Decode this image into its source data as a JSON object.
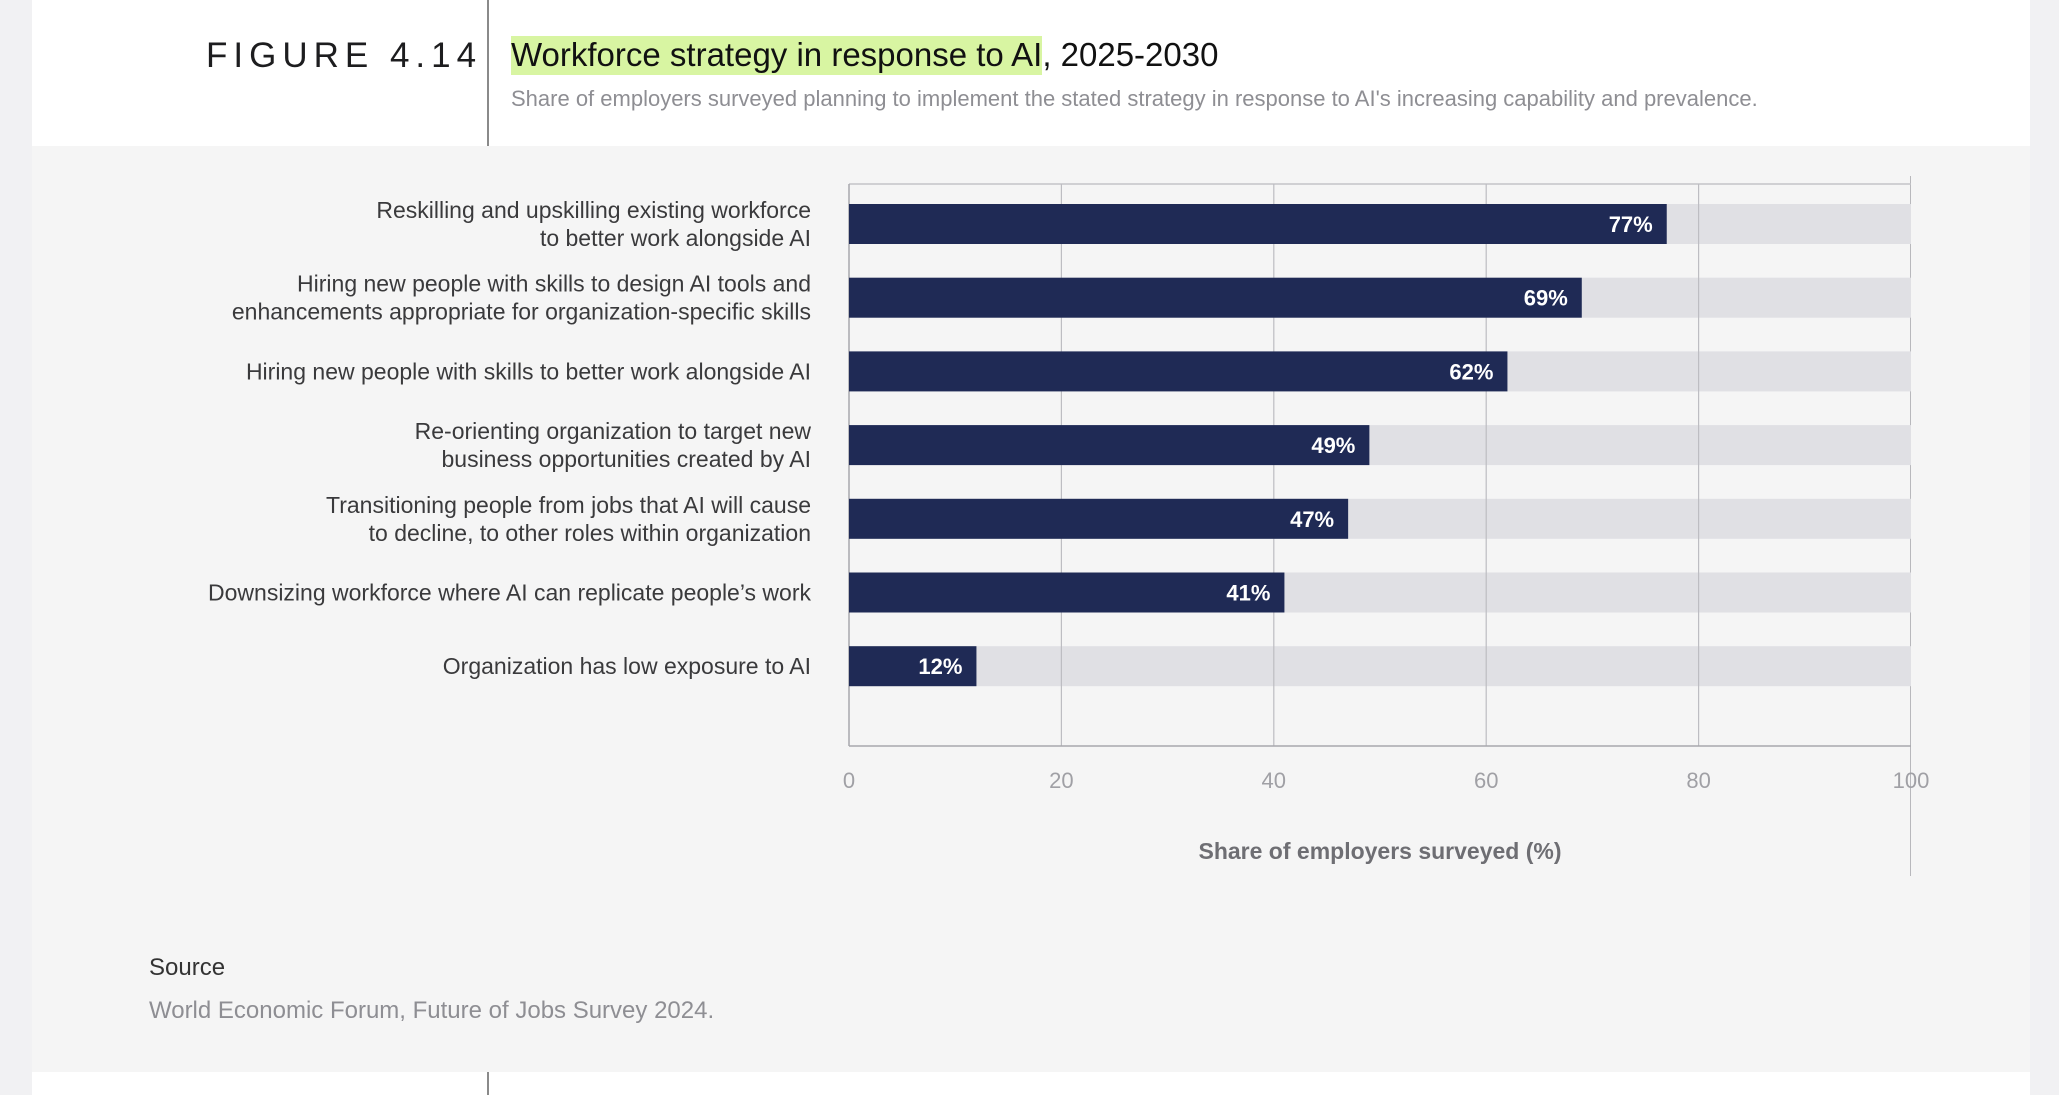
{
  "figure_label": "FIGURE 4.14",
  "title_highlight": "Workforce strategy in response to AI",
  "title_rest": ", 2025-2030",
  "subtitle": "Share of employers surveyed planning to implement the stated strategy in response to AI's increasing capability and prevalence.",
  "source": {
    "heading": "Source",
    "text": "World Economic Forum, Future of Jobs Survey 2024."
  },
  "colors": {
    "bar": "#1f2a55",
    "track": "#e0e0e4",
    "highlight": "#d8f5a2",
    "background": "#f5f5f5"
  },
  "chart_data": {
    "type": "bar",
    "orientation": "horizontal",
    "categories": [
      [
        "Reskilling and upskilling existing workforce",
        "to better work alongside AI"
      ],
      [
        "Hiring new people with skills to design AI tools and",
        "enhancements appropriate for organization-specific skills"
      ],
      [
        "Hiring new people with skills to better work alongside AI"
      ],
      [
        "Re-orienting organization to target new",
        "business opportunities created by AI"
      ],
      [
        "Transitioning people from jobs that AI will cause",
        "to decline, to other roles within organization"
      ],
      [
        "Downsizing workforce where AI can replicate people’s work"
      ],
      [
        "Organization has low exposure to AI"
      ]
    ],
    "values": [
      77,
      69,
      62,
      49,
      47,
      41,
      12
    ],
    "value_labels": [
      "77%",
      "69%",
      "62%",
      "49%",
      "47%",
      "41%",
      "12%"
    ],
    "xlabel": "Share of employers surveyed (%)",
    "xlim": [
      0,
      100
    ],
    "xticks": [
      0,
      20,
      40,
      60,
      80,
      100
    ],
    "xtick_labels": [
      "0",
      "20",
      "40",
      "60",
      "80",
      "100"
    ],
    "grid": true
  }
}
